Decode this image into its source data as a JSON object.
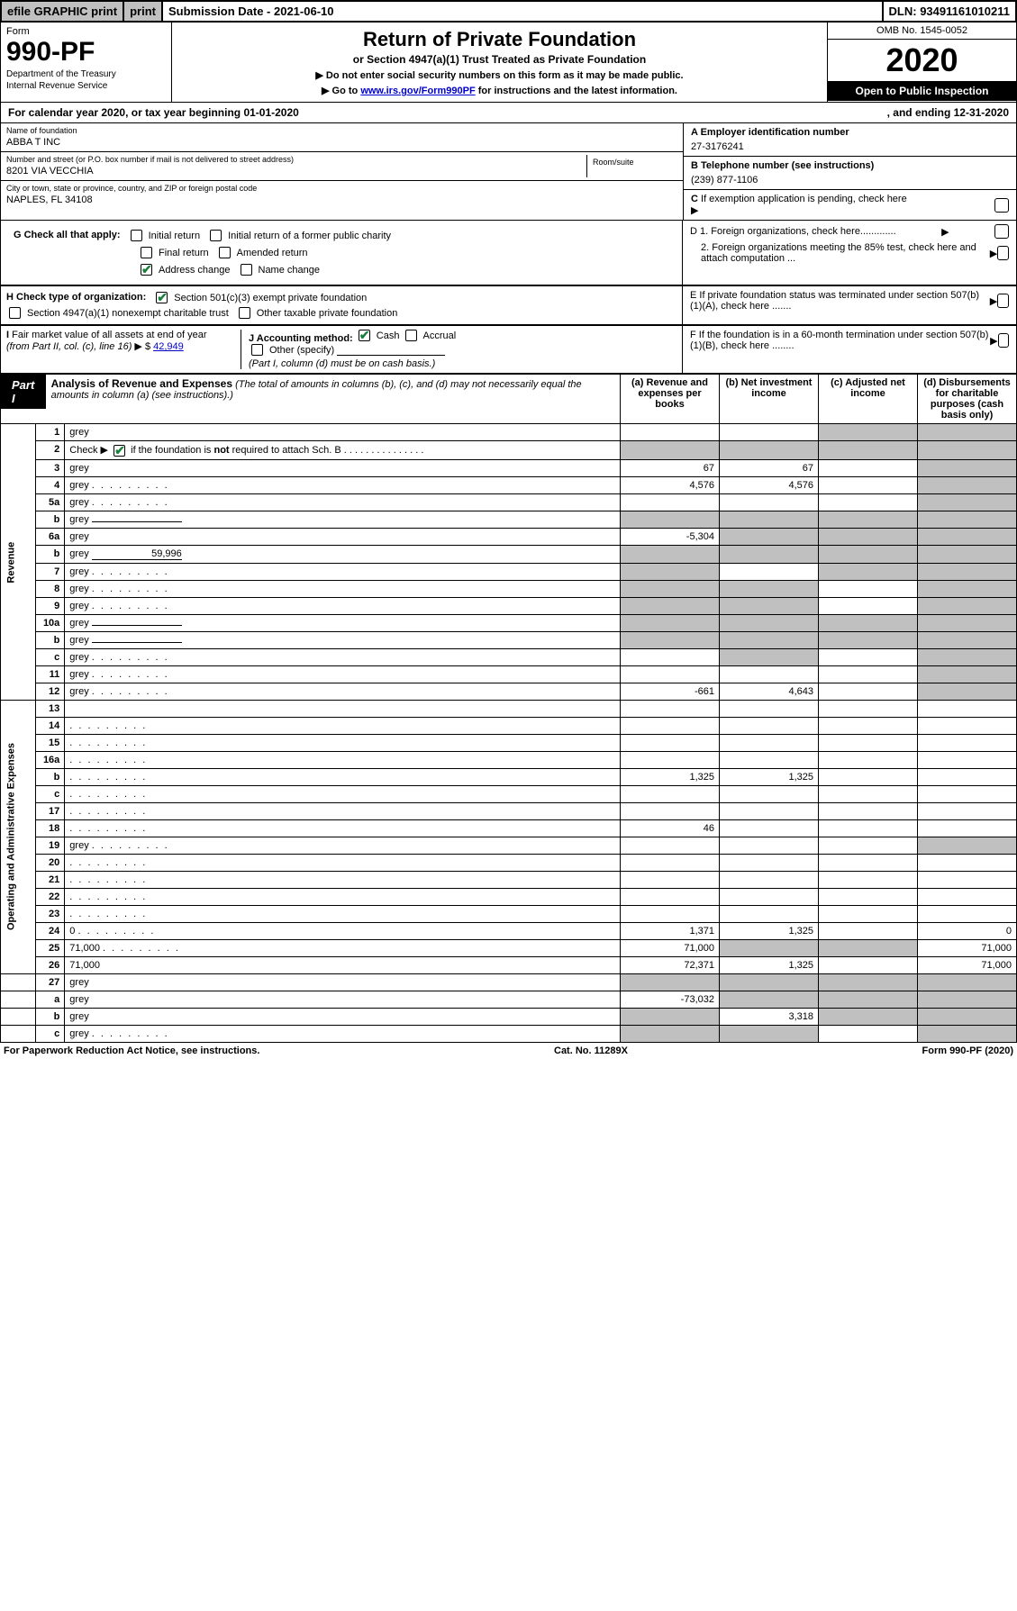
{
  "topbar": {
    "efile": "efile GRAPHIC print",
    "submission": "Submission Date - 2021-06-10",
    "dln": "DLN: 93491161010211"
  },
  "header": {
    "form_word": "Form",
    "form_no": "990-PF",
    "dept1": "Department of the Treasury",
    "dept2": "Internal Revenue Service",
    "title": "Return of Private Foundation",
    "subtitle": "or Section 4947(a)(1) Trust Treated as Private Foundation",
    "instr1": "▶ Do not enter social security numbers on this form as it may be made public.",
    "instr2_pre": "▶ Go to ",
    "instr2_link": "www.irs.gov/Form990PF",
    "instr2_post": " for instructions and the latest information.",
    "omb": "OMB No. 1545-0052",
    "year": "2020",
    "open": "Open to Public Inspection"
  },
  "calyear": {
    "left": "For calendar year 2020, or tax year beginning 01-01-2020",
    "right": ", and ending 12-31-2020"
  },
  "id": {
    "name_lbl": "Name of foundation",
    "name": "ABBA T INC",
    "addr_lbl": "Number and street (or P.O. box number if mail is not delivered to street address)",
    "addr": "8201 VIA VECCHIA",
    "room_lbl": "Room/suite",
    "city_lbl": "City or town, state or province, country, and ZIP or foreign postal code",
    "city": "NAPLES, FL  34108"
  },
  "right": {
    "a_lbl": "A Employer identification number",
    "a_val": "27-3176241",
    "b_lbl": "B Telephone number (see instructions)",
    "b_val": "(239) 877-1106",
    "c_lbl": "C If exemption application is pending, check here",
    "d1": "D 1. Foreign organizations, check here.............",
    "d2": "2. Foreign organizations meeting the 85% test, check here and attach computation ...",
    "e": "E  If private foundation status was terminated under section 507(b)(1)(A), check here .......",
    "f": "F  If the foundation is in a 60-month termination under section 507(b)(1)(B), check here ........"
  },
  "g": {
    "lbl": "G Check all that apply:",
    "opts": [
      "Initial return",
      "Initial return of a former public charity",
      "Final return",
      "Amended return",
      "Address change",
      "Name change"
    ]
  },
  "h": {
    "lbl": "H Check type of organization:",
    "o1": "Section 501(c)(3) exempt private foundation",
    "o2": "Section 4947(a)(1) nonexempt charitable trust",
    "o3": "Other taxable private foundation"
  },
  "i": {
    "lbl": "I Fair market value of all assets at end of year (from Part II, col. (c), line 16) ▶ $",
    "val": "42,949"
  },
  "j": {
    "lbl": "J Accounting method:",
    "cash": "Cash",
    "accrual": "Accrual",
    "other": "Other (specify)",
    "note": "(Part I, column (d) must be on cash basis.)"
  },
  "part1": {
    "tag": "Part I",
    "title": "Analysis of Revenue and Expenses",
    "title_note": " (The total of amounts in columns (b), (c), and (d) may not necessarily equal the amounts in column (a) (see instructions).)",
    "cols": {
      "a": "(a)   Revenue and expenses per books",
      "b": "(b)  Net investment income",
      "c": "(c)  Adjusted net income",
      "d": "(d)  Disbursements for charitable purposes (cash basis only)"
    }
  },
  "side": {
    "rev": "Revenue",
    "exp": "Operating and Administrative Expenses"
  },
  "rows": [
    {
      "n": "1",
      "d": "grey",
      "a": "",
      "b": "",
      "c": "grey"
    },
    {
      "n": "2",
      "d": "grey",
      "dots": true,
      "a": "grey",
      "b": "grey",
      "c": "grey",
      "checkbox": true
    },
    {
      "n": "3",
      "d": "grey",
      "a": "67",
      "b": "67",
      "c": ""
    },
    {
      "n": "4",
      "d": "grey",
      "dots": true,
      "a": "4,576",
      "b": "4,576",
      "c": ""
    },
    {
      "n": "5a",
      "d": "grey",
      "dots": true,
      "a": "",
      "b": "",
      "c": ""
    },
    {
      "n": "b",
      "d": "grey",
      "uline": true,
      "a": "grey",
      "b": "grey",
      "c": "grey"
    },
    {
      "n": "6a",
      "d": "grey",
      "a": "-5,304",
      "b": "grey",
      "c": "grey"
    },
    {
      "n": "b",
      "d": "grey",
      "uline": true,
      "uval": "59,996",
      "a": "grey",
      "b": "grey",
      "c": "grey"
    },
    {
      "n": "7",
      "d": "grey",
      "dots": true,
      "a": "grey",
      "b": "",
      "c": "grey"
    },
    {
      "n": "8",
      "d": "grey",
      "dots": true,
      "a": "grey",
      "b": "grey",
      "c": ""
    },
    {
      "n": "9",
      "d": "grey",
      "dots": true,
      "a": "grey",
      "b": "grey",
      "c": ""
    },
    {
      "n": "10a",
      "d": "grey",
      "uline": true,
      "a": "grey",
      "b": "grey",
      "c": "grey"
    },
    {
      "n": "b",
      "d": "grey",
      "dots": true,
      "uline": true,
      "a": "grey",
      "b": "grey",
      "c": "grey"
    },
    {
      "n": "c",
      "d": "grey",
      "dots": true,
      "a": "",
      "b": "grey",
      "c": ""
    },
    {
      "n": "11",
      "d": "grey",
      "dots": true,
      "a": "",
      "b": "",
      "c": ""
    },
    {
      "n": "12",
      "d": "grey",
      "dots": true,
      "a": "-661",
      "b": "4,643",
      "c": ""
    }
  ],
  "exp_rows": [
    {
      "n": "13",
      "d": "",
      "a": "",
      "b": "",
      "c": ""
    },
    {
      "n": "14",
      "d": "",
      "dots": true,
      "a": "",
      "b": "",
      "c": ""
    },
    {
      "n": "15",
      "d": "",
      "dots": true,
      "a": "",
      "b": "",
      "c": ""
    },
    {
      "n": "16a",
      "d": "",
      "dots": true,
      "a": "",
      "b": "",
      "c": ""
    },
    {
      "n": "b",
      "d": "",
      "dots": true,
      "a": "1,325",
      "b": "1,325",
      "c": ""
    },
    {
      "n": "c",
      "d": "",
      "dots": true,
      "a": "",
      "b": "",
      "c": ""
    },
    {
      "n": "17",
      "d": "",
      "dots": true,
      "a": "",
      "b": "",
      "c": ""
    },
    {
      "n": "18",
      "d": "",
      "dots": true,
      "a": "46",
      "b": "",
      "c": ""
    },
    {
      "n": "19",
      "d": "grey",
      "dots": true,
      "a": "",
      "b": "",
      "c": ""
    },
    {
      "n": "20",
      "d": "",
      "dots": true,
      "a": "",
      "b": "",
      "c": ""
    },
    {
      "n": "21",
      "d": "",
      "dots": true,
      "a": "",
      "b": "",
      "c": ""
    },
    {
      "n": "22",
      "d": "",
      "dots": true,
      "a": "",
      "b": "",
      "c": ""
    },
    {
      "n": "23",
      "d": "",
      "dots": true,
      "a": "",
      "b": "",
      "c": ""
    },
    {
      "n": "24",
      "d": "0",
      "dots": true,
      "a": "1,371",
      "b": "1,325",
      "c": ""
    },
    {
      "n": "25",
      "d": "71,000",
      "dots": true,
      "a": "71,000",
      "b": "grey",
      "c": "grey"
    },
    {
      "n": "26",
      "d": "71,000",
      "a": "72,371",
      "b": "1,325",
      "c": ""
    },
    {
      "n": "27",
      "d": "grey",
      "a": "grey",
      "b": "grey",
      "c": "grey",
      "noSide": true
    },
    {
      "n": "a",
      "d": "grey",
      "a": "-73,032",
      "b": "grey",
      "c": "grey",
      "noSide": true
    },
    {
      "n": "b",
      "d": "grey",
      "a": "grey",
      "b": "3,318",
      "c": "grey",
      "noSide": true
    },
    {
      "n": "c",
      "d": "grey",
      "dots": true,
      "a": "grey",
      "b": "grey",
      "c": "",
      "noSide": true
    }
  ],
  "footer": {
    "left": "For Paperwork Reduction Act Notice, see instructions.",
    "mid": "Cat. No. 11289X",
    "right": "Form 990-PF (2020)"
  }
}
